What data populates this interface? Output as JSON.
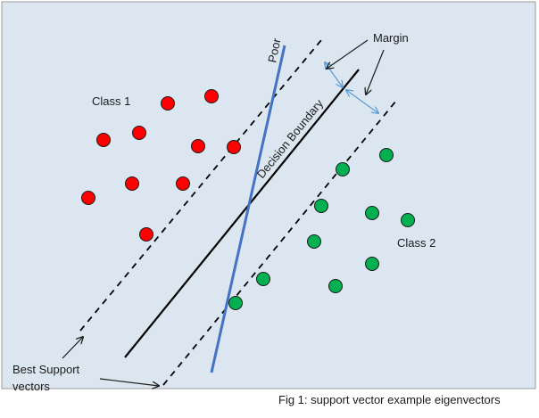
{
  "labels": {
    "class1": "Class 1",
    "class2": "Class 2",
    "poor": "Poor",
    "margin": "Margin",
    "decision_boundary": "Decision Boundary",
    "best_support_line1": "Best Support",
    "best_support_line2": "vectors"
  },
  "caption": "Fig 1: support vector example eigenvectors",
  "colors": {
    "panel_bg": "#dce6f1",
    "panel_border": "#9a9a9a",
    "class1_fill": "#ff0000",
    "class2_fill": "#00b050",
    "point_stroke": "#1a1a1a",
    "poor_line": "#4472c4",
    "margin_arrow": "#5b9bd5",
    "boundary": "#000000"
  },
  "points": {
    "class1": 11,
    "class2": 11
  }
}
